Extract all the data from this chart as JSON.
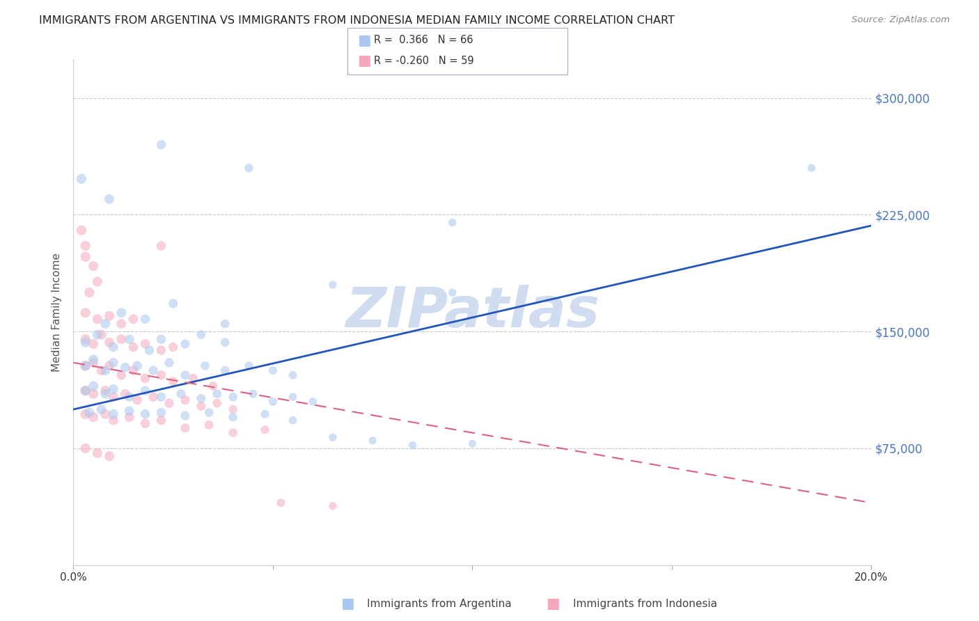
{
  "title": "IMMIGRANTS FROM ARGENTINA VS IMMIGRANTS FROM INDONESIA MEDIAN FAMILY INCOME CORRELATION CHART",
  "source": "Source: ZipAtlas.com",
  "ylabel": "Median Family Income",
  "xlim": [
    0.0,
    0.2
  ],
  "ylim": [
    0,
    325000
  ],
  "yticks": [
    0,
    75000,
    150000,
    225000,
    300000
  ],
  "xticks": [
    0.0,
    0.05,
    0.1,
    0.15,
    0.2
  ],
  "xtick_labels": [
    "0.0%",
    "",
    "",
    "",
    "20.0%"
  ],
  "argentina_color": "#A8C8F0",
  "indonesia_color": "#F5A8BC",
  "argentina_line_color": "#2255BB",
  "indonesia_line_color": "#E06080",
  "background_color": "#FFFFFF",
  "grid_color": "#C8C8D8",
  "title_color": "#222222",
  "right_tick_color": "#4477CC",
  "watermark_color": "#D0DCF0",
  "arg_line_x0": 0.0,
  "arg_line_y0": 100000,
  "arg_line_x1": 0.2,
  "arg_line_y1": 218000,
  "ind_line_x0": 0.0,
  "ind_line_y0": 130000,
  "ind_line_x1": 0.2,
  "ind_line_y1": 40000,
  "argentina_scatter": [
    [
      0.002,
      248000
    ],
    [
      0.009,
      235000
    ],
    [
      0.022,
      270000
    ],
    [
      0.044,
      255000
    ],
    [
      0.095,
      220000
    ],
    [
      0.185,
      255000
    ],
    [
      0.065,
      180000
    ],
    [
      0.095,
      175000
    ],
    [
      0.008,
      155000
    ],
    [
      0.012,
      162000
    ],
    [
      0.018,
      158000
    ],
    [
      0.025,
      168000
    ],
    [
      0.038,
      155000
    ],
    [
      0.003,
      143000
    ],
    [
      0.006,
      148000
    ],
    [
      0.01,
      140000
    ],
    [
      0.014,
      145000
    ],
    [
      0.019,
      138000
    ],
    [
      0.022,
      145000
    ],
    [
      0.028,
      142000
    ],
    [
      0.032,
      148000
    ],
    [
      0.038,
      143000
    ],
    [
      0.003,
      128000
    ],
    [
      0.005,
      132000
    ],
    [
      0.008,
      125000
    ],
    [
      0.01,
      130000
    ],
    [
      0.013,
      127000
    ],
    [
      0.016,
      128000
    ],
    [
      0.02,
      125000
    ],
    [
      0.024,
      130000
    ],
    [
      0.028,
      122000
    ],
    [
      0.033,
      128000
    ],
    [
      0.038,
      125000
    ],
    [
      0.044,
      128000
    ],
    [
      0.05,
      125000
    ],
    [
      0.055,
      122000
    ],
    [
      0.003,
      112000
    ],
    [
      0.005,
      115000
    ],
    [
      0.008,
      110000
    ],
    [
      0.01,
      113000
    ],
    [
      0.014,
      108000
    ],
    [
      0.018,
      112000
    ],
    [
      0.022,
      108000
    ],
    [
      0.027,
      110000
    ],
    [
      0.032,
      107000
    ],
    [
      0.036,
      110000
    ],
    [
      0.04,
      108000
    ],
    [
      0.045,
      110000
    ],
    [
      0.05,
      105000
    ],
    [
      0.055,
      108000
    ],
    [
      0.06,
      105000
    ],
    [
      0.004,
      98000
    ],
    [
      0.007,
      100000
    ],
    [
      0.01,
      97000
    ],
    [
      0.014,
      99000
    ],
    [
      0.018,
      97000
    ],
    [
      0.022,
      98000
    ],
    [
      0.028,
      96000
    ],
    [
      0.034,
      98000
    ],
    [
      0.04,
      95000
    ],
    [
      0.048,
      97000
    ],
    [
      0.055,
      93000
    ],
    [
      0.065,
      82000
    ],
    [
      0.075,
      80000
    ],
    [
      0.085,
      77000
    ],
    [
      0.1,
      78000
    ]
  ],
  "indonesia_scatter": [
    [
      0.002,
      215000
    ],
    [
      0.003,
      205000
    ],
    [
      0.003,
      198000
    ],
    [
      0.005,
      192000
    ],
    [
      0.006,
      182000
    ],
    [
      0.004,
      175000
    ],
    [
      0.022,
      205000
    ],
    [
      0.003,
      162000
    ],
    [
      0.006,
      158000
    ],
    [
      0.009,
      160000
    ],
    [
      0.012,
      155000
    ],
    [
      0.015,
      158000
    ],
    [
      0.003,
      145000
    ],
    [
      0.005,
      142000
    ],
    [
      0.007,
      148000
    ],
    [
      0.009,
      143000
    ],
    [
      0.012,
      145000
    ],
    [
      0.015,
      140000
    ],
    [
      0.018,
      142000
    ],
    [
      0.022,
      138000
    ],
    [
      0.025,
      140000
    ],
    [
      0.003,
      128000
    ],
    [
      0.005,
      130000
    ],
    [
      0.007,
      125000
    ],
    [
      0.009,
      128000
    ],
    [
      0.012,
      122000
    ],
    [
      0.015,
      125000
    ],
    [
      0.018,
      120000
    ],
    [
      0.022,
      122000
    ],
    [
      0.025,
      118000
    ],
    [
      0.03,
      120000
    ],
    [
      0.035,
      115000
    ],
    [
      0.003,
      112000
    ],
    [
      0.005,
      110000
    ],
    [
      0.008,
      112000
    ],
    [
      0.01,
      108000
    ],
    [
      0.013,
      110000
    ],
    [
      0.016,
      106000
    ],
    [
      0.02,
      108000
    ],
    [
      0.024,
      104000
    ],
    [
      0.028,
      106000
    ],
    [
      0.032,
      102000
    ],
    [
      0.036,
      104000
    ],
    [
      0.04,
      100000
    ],
    [
      0.003,
      97000
    ],
    [
      0.005,
      95000
    ],
    [
      0.008,
      97000
    ],
    [
      0.01,
      93000
    ],
    [
      0.014,
      95000
    ],
    [
      0.018,
      91000
    ],
    [
      0.022,
      93000
    ],
    [
      0.028,
      88000
    ],
    [
      0.034,
      90000
    ],
    [
      0.04,
      85000
    ],
    [
      0.048,
      87000
    ],
    [
      0.052,
      40000
    ],
    [
      0.065,
      38000
    ],
    [
      0.003,
      75000
    ],
    [
      0.006,
      72000
    ],
    [
      0.009,
      70000
    ]
  ]
}
